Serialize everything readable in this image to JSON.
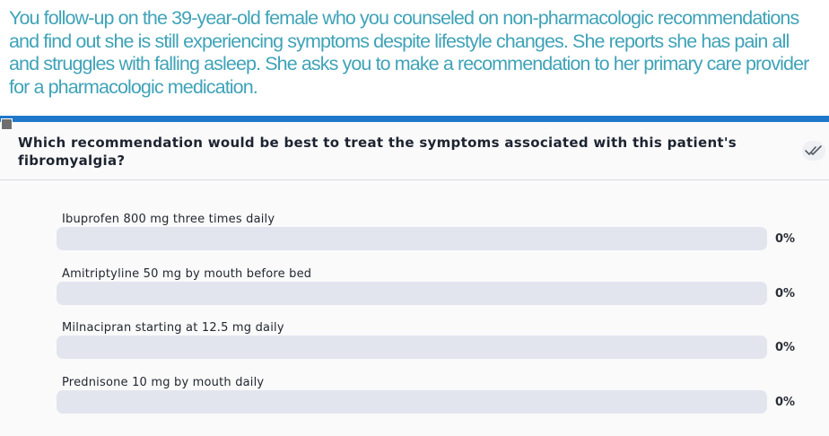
{
  "scenario": {
    "text": "You follow-up on the 39-year-old female who you counseled on non-pharmacologic recommendations and find out she is still experiencing symptoms despite lifestyle changes. She reports she has pain all and struggles with falling asleep. She asks you to make a recommendation to her primary care provider for a pharmacologic medication."
  },
  "poll": {
    "question": "Which recommendation would be best to treat the symptoms associated with this patient's fibromyalgia?",
    "header_icon": "check-icon",
    "accent_color": "#1f78c9",
    "options": [
      {
        "label": "Ibuprofen 800 mg three times daily",
        "percent_text": "0%",
        "percent": 0
      },
      {
        "label": "Amitriptyline 50 mg by mouth before bed",
        "percent_text": "0%",
        "percent": 0
      },
      {
        "label": "Milnacipran starting at 12.5 mg daily",
        "percent_text": "0%",
        "percent": 0
      },
      {
        "label": "Prednisone 10 mg by mouth daily",
        "percent_text": "0%",
        "percent": 0
      }
    ]
  },
  "colors": {
    "scenario_text": "#3fa3b8",
    "bar_track": "#e3e5ee",
    "panel_background": "#fafafb"
  }
}
